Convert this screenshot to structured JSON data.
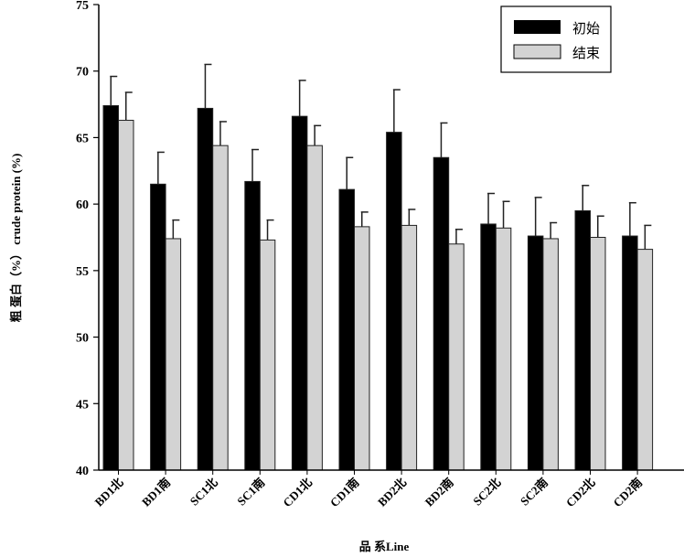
{
  "chart_data": {
    "type": "bar",
    "xlabel": "品 系Line",
    "ylabel": "粗 蛋白（%） crude protein (%)",
    "ylim": [
      40,
      75
    ],
    "yticks": [
      40,
      45,
      50,
      55,
      60,
      65,
      70,
      75
    ],
    "grid": false,
    "legend": "top-right",
    "categories": [
      "BD1北",
      "BD1南",
      "SC1北",
      "SC1南",
      "CD1北",
      "CD1南",
      "BD2北",
      "BD2南",
      "SC2北",
      "SC2南",
      "CD2北",
      "CD2南"
    ],
    "series": [
      {
        "name": "初始",
        "color": "#000000",
        "values": [
          67.4,
          61.5,
          67.2,
          61.7,
          66.6,
          61.1,
          65.4,
          63.5,
          58.5,
          57.6,
          59.5,
          57.6
        ],
        "errors": [
          2.2,
          2.4,
          3.3,
          2.4,
          2.7,
          2.4,
          3.2,
          2.6,
          2.3,
          2.9,
          1.9,
          2.5
        ]
      },
      {
        "name": "结束",
        "color": "#d3d3d3",
        "values": [
          66.3,
          57.4,
          64.4,
          57.3,
          64.4,
          58.3,
          58.4,
          57.0,
          58.2,
          57.4,
          57.5,
          56.6
        ],
        "errors": [
          2.1,
          1.4,
          1.8,
          1.5,
          1.5,
          1.1,
          1.2,
          1.1,
          2.0,
          1.2,
          1.6,
          1.8
        ]
      }
    ]
  }
}
